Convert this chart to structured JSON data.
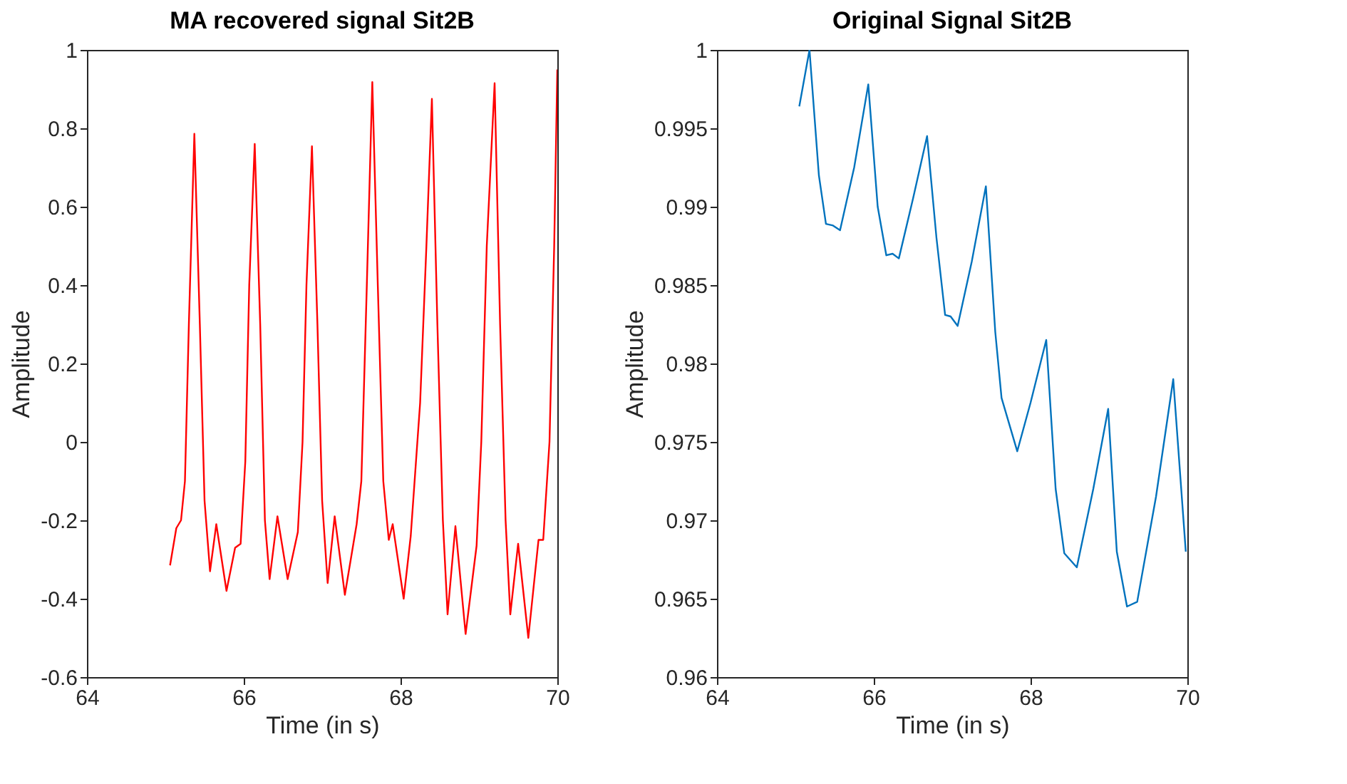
{
  "chart_data": [
    {
      "type": "line",
      "title": "MA recovered signal Sit2B",
      "xlabel": "Time (in s)",
      "ylabel": "Amplitude",
      "xlim": [
        64,
        70
      ],
      "ylim": [
        -0.6,
        1
      ],
      "xticks": [
        64,
        66,
        68,
        70
      ],
      "yticks": [
        -0.6,
        -0.4,
        -0.2,
        0,
        0.2,
        0.4,
        0.6,
        0.8,
        1
      ],
      "series": [
        {
          "color": "#ff0000",
          "x": [
            65.06,
            65.14,
            65.2,
            65.25,
            65.3,
            65.37,
            65.44,
            65.5,
            65.57,
            65.65,
            65.78,
            65.89,
            65.96,
            66.02,
            66.07,
            66.14,
            66.21,
            66.27,
            66.33,
            66.43,
            66.56,
            66.69,
            66.75,
            66.8,
            66.87,
            66.94,
            67.0,
            67.07,
            67.16,
            67.29,
            67.44,
            67.5,
            67.57,
            67.64,
            67.71,
            67.78,
            67.85,
            67.9,
            68.04,
            68.13,
            68.25,
            68.33,
            68.4,
            68.47,
            68.54,
            68.6,
            68.7,
            68.83,
            68.97,
            69.03,
            69.1,
            69.2,
            69.27,
            69.34,
            69.4,
            69.5,
            69.63,
            69.76,
            69.82,
            69.9,
            69.96,
            70.0
          ],
          "values": [
            -0.315,
            -0.22,
            -0.2,
            -0.1,
            0.3,
            0.786,
            0.3,
            -0.15,
            -0.33,
            -0.21,
            -0.38,
            -0.27,
            -0.26,
            -0.05,
            0.4,
            0.76,
            0.3,
            -0.2,
            -0.35,
            -0.19,
            -0.35,
            -0.23,
            0.0,
            0.4,
            0.754,
            0.3,
            -0.15,
            -0.36,
            -0.19,
            -0.39,
            -0.21,
            -0.1,
            0.4,
            0.918,
            0.4,
            -0.1,
            -0.25,
            -0.21,
            -0.4,
            -0.24,
            0.1,
            0.5,
            0.875,
            0.3,
            -0.2,
            -0.44,
            -0.215,
            -0.49,
            -0.265,
            0.0,
            0.5,
            0.915,
            0.3,
            -0.2,
            -0.44,
            -0.26,
            -0.5,
            -0.25,
            -0.25,
            0.0,
            0.5,
            0.95
          ]
        }
      ]
    },
    {
      "type": "line",
      "title": "Original Signal Sit2B",
      "xlabel": "Time (in s)",
      "ylabel": "Amplitude",
      "xlim": [
        64,
        70
      ],
      "ylim": [
        0.96,
        1
      ],
      "xticks": [
        64,
        66,
        68,
        70
      ],
      "yticks": [
        0.96,
        0.965,
        0.97,
        0.975,
        0.98,
        0.985,
        0.99,
        0.995,
        1
      ],
      "series": [
        {
          "color": "#0072bd",
          "x": [
            65.05,
            65.18,
            65.3,
            65.39,
            65.48,
            65.57,
            65.75,
            65.93,
            66.05,
            66.16,
            66.24,
            66.32,
            66.5,
            66.68,
            66.8,
            66.91,
            66.98,
            67.07,
            67.25,
            67.43,
            67.55,
            67.63,
            67.83,
            68.0,
            68.2,
            68.32,
            68.43,
            68.59,
            68.8,
            68.99,
            69.1,
            69.23,
            69.36,
            69.6,
            69.82,
            69.98
          ],
          "values": [
            0.9964,
            1.0,
            0.992,
            0.9889,
            0.9888,
            0.9885,
            0.9925,
            0.9978,
            0.99,
            0.9869,
            0.987,
            0.9867,
            0.9905,
            0.9945,
            0.988,
            0.9831,
            0.983,
            0.9824,
            0.9865,
            0.9913,
            0.982,
            0.9778,
            0.9744,
            0.9775,
            0.9815,
            0.972,
            0.9679,
            0.967,
            0.972,
            0.9771,
            0.968,
            0.9645,
            0.9648,
            0.9715,
            0.979,
            0.968
          ]
        }
      ]
    }
  ]
}
